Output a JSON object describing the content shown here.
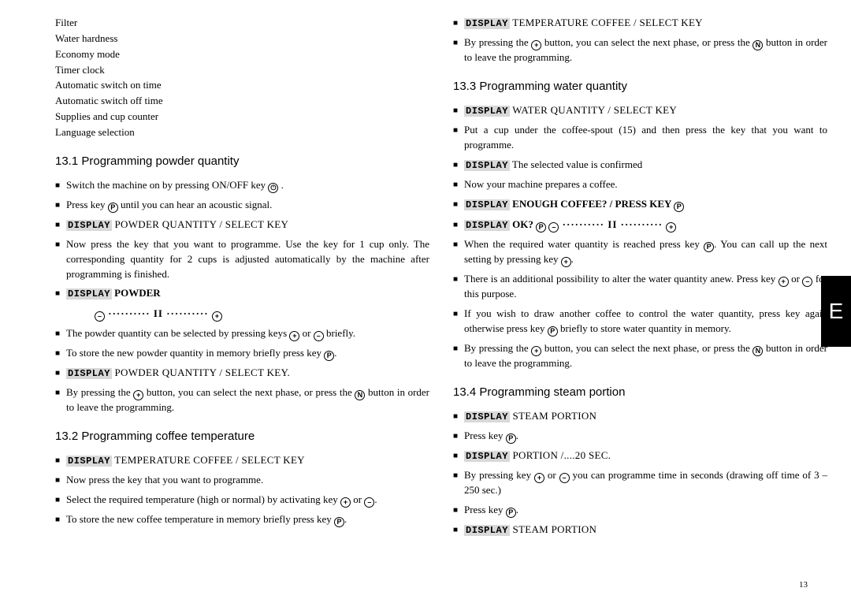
{
  "sideTab": "E",
  "pageNumber": "13",
  "displayLabel": "DISPLAY",
  "introList": [
    "Filter",
    "Water hardness",
    "Economy mode",
    "Timer clock",
    "Automatic switch on time",
    "Automatic switch off time",
    "Supplies and cup counter",
    "Language selection"
  ],
  "s131": {
    "title": "13.1 Programming powder quantity",
    "i1a": "Switch the machine on by pressing ON/OFF key ",
    "i1b": " .",
    "i2a": "Press key ",
    "i2b": " until you can hear an acoustic signal.",
    "i3": " POWDER QUANTITY / SELECT KEY",
    "i4": "Now press the key that you want to programme. Use the key for 1 cup only. The corresponding quantity for 2 cups is adjusted automatically by the machine after programming is finished.",
    "i5": " POWDER",
    "i5line": " ·········· II ·········· ",
    "i6a": "The powder quantity can be selected by pressing keys ",
    "i6b": " or ",
    "i6c": " briefly.",
    "i7a": "To store the new powder quantity in memory briefly press key ",
    "i7b": ".",
    "i8": " POWDER QUANTITY / SELECT KEY.",
    "i9a": "By pressing the ",
    "i9b": " button, you can select the next phase, or press the ",
    "i9c": " button in order to leave the programming."
  },
  "s132": {
    "title": "13.2 Programming coffee temperature",
    "i1": " TEMPERATURE COFFEE / SELECT KEY",
    "i2": "Now press the key that you want to programme.",
    "i3a": "Select the required temperature (high or normal) by activating key ",
    "i3b": " or ",
    "i3c": ".",
    "i4a": "To store the new coffee temperature in memory briefly press key ",
    "i4b": "."
  },
  "s132b": {
    "i1": " TEMPERATURE COFFEE / SELECT KEY",
    "i2a": "By pressing the ",
    "i2b": " button, you can select the next phase, or press the ",
    "i2c": " button in order to leave the programming."
  },
  "s133": {
    "title": "13.3 Programming water quantity",
    "i1": " WATER QUANTITY / SELECT KEY",
    "i2": "Put a cup under the coffee-spout (15) and then press the key that you want to programme.",
    "i3": " The selected value is confirmed",
    "i4": "Now your machine prepares a coffee.",
    "i5": " ENOUGH COFFEE? / PRESS KEY ",
    "i6a": " OK? ",
    "i6b": " ·········· II ·········· ",
    "i7a": "When the required water quantity is reached press key ",
    "i7b": ". You can call up the next setting by pressing key ",
    "i7c": ".",
    "i8a": "There is an additional possibility to alter the water quantity anew. Press key ",
    "i8b": " or ",
    "i8c": " for this purpose.",
    "i9a": "If you wish to draw another coffee to control the water quantity, press key again otherwise press key ",
    "i9b": " briefly to store water quantity in memory.",
    "i10a": "By pressing the ",
    "i10b": " button, you can select the next phase, or press the ",
    "i10c": " button in order to leave the programming."
  },
  "s134": {
    "title": "13.4 Programming steam portion",
    "i1": " STEAM PORTION",
    "i2a": "Press key ",
    "i2b": ".",
    "i3": " PORTION /....20 SEC.",
    "i4a": "By pressing key ",
    "i4b": " or ",
    "i4c": " you can programme time in seconds (drawing off time of  3 – 250 sec.)",
    "i5a": "Press key ",
    "i5b": ".",
    "i6": " STEAM PORTION"
  },
  "sym": {
    "power": "⏻",
    "P": "P",
    "N": "N",
    "plus": "+",
    "minus": "–"
  }
}
